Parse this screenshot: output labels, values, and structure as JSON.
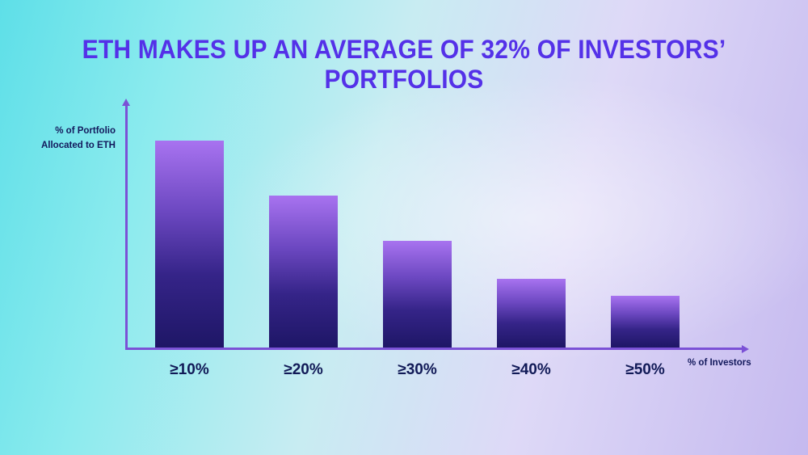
{
  "title": "ETH MAKES UP AN AVERAGE OF 32% OF INVESTORS’ PORTFOLIOS",
  "colors": {
    "title": "#5431e8",
    "axis": "#7b51d6",
    "label_text": "#13195c",
    "bar_top": "#a873f0",
    "bar_bottom": "#1e1666",
    "background_left": "#5edfe8",
    "background_right": "#c5b9ef"
  },
  "chart_data": {
    "type": "bar",
    "categories": [
      "≥10%",
      "≥20%",
      "≥30%",
      "≥40%",
      "≥50%"
    ],
    "values": [
      60,
      44,
      31,
      20,
      15
    ],
    "title": "ETH MAKES UP AN AVERAGE OF 32% OF INVESTORS’ PORTFOLIOS",
    "xlabel": "% of Investors",
    "ylabel": "% of Portfolio Allocated to ETH",
    "ylabel_lines": [
      "% of Portfolio",
      "Allocated to ETH"
    ],
    "ylim": [
      0,
      70
    ],
    "grid": false,
    "legend": false,
    "y_ticks_visible": false,
    "value_labels_visible": false
  }
}
